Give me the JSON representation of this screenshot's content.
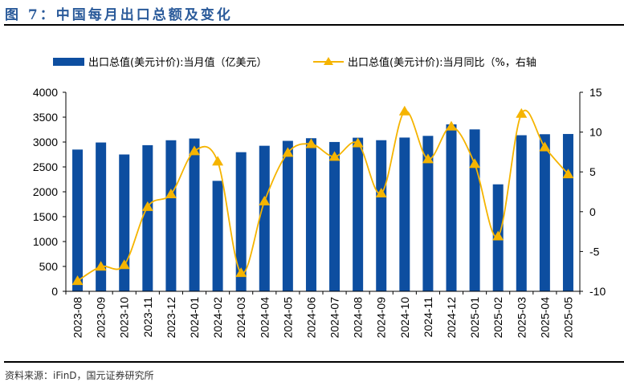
{
  "title": "图 7：中国每月出口总额及变化",
  "source": "资料来源：iFinD，国元证券研究所",
  "chart_data": {
    "type": "bar+line",
    "categories": [
      "2023-08",
      "2023-09",
      "2023-10",
      "2023-11",
      "2023-12",
      "2024-01",
      "2024-02",
      "2024-03",
      "2024-04",
      "2024-05",
      "2024-06",
      "2024-07",
      "2024-08",
      "2024-09",
      "2024-10",
      "2024-11",
      "2024-12",
      "2025-01",
      "2025-02",
      "2025-03",
      "2025-04",
      "2025-05"
    ],
    "series": [
      {
        "name": "出口总值(美元计价):当月值（亿美元）",
        "type": "bar",
        "axis": "left",
        "color": "#0d4ea0",
        "values": [
          2849,
          2991,
          2750,
          2937,
          3036,
          3071,
          2220,
          2796,
          2925,
          3024,
          3077,
          3001,
          3087,
          3037,
          3090,
          3124,
          3355,
          3254,
          2150,
          3137,
          3157,
          3162
        ]
      },
      {
        "name": "出口总值(美元计价):当月同比（%，右轴",
        "type": "line",
        "axis": "right",
        "color": "#f5b400",
        "marker": "triangle",
        "values": [
          -8.7,
          -6.9,
          -6.7,
          0.6,
          2.2,
          7.6,
          6.3,
          -7.7,
          1.3,
          7.4,
          8.5,
          6.9,
          8.6,
          2.3,
          12.6,
          6.6,
          10.7,
          6.0,
          -3.1,
          12.3,
          8.1,
          4.7
        ]
      }
    ],
    "y_left": {
      "range": [
        0,
        4000
      ],
      "ticks": [
        "0",
        "500",
        "1000",
        "1500",
        "2000",
        "2500",
        "3000",
        "3500",
        "4000"
      ]
    },
    "y_right": {
      "range": [
        -10,
        15
      ],
      "ticks": [
        "-10",
        "-5",
        "0",
        "5",
        "10",
        "15"
      ]
    },
    "grid": false,
    "legend": "top"
  }
}
